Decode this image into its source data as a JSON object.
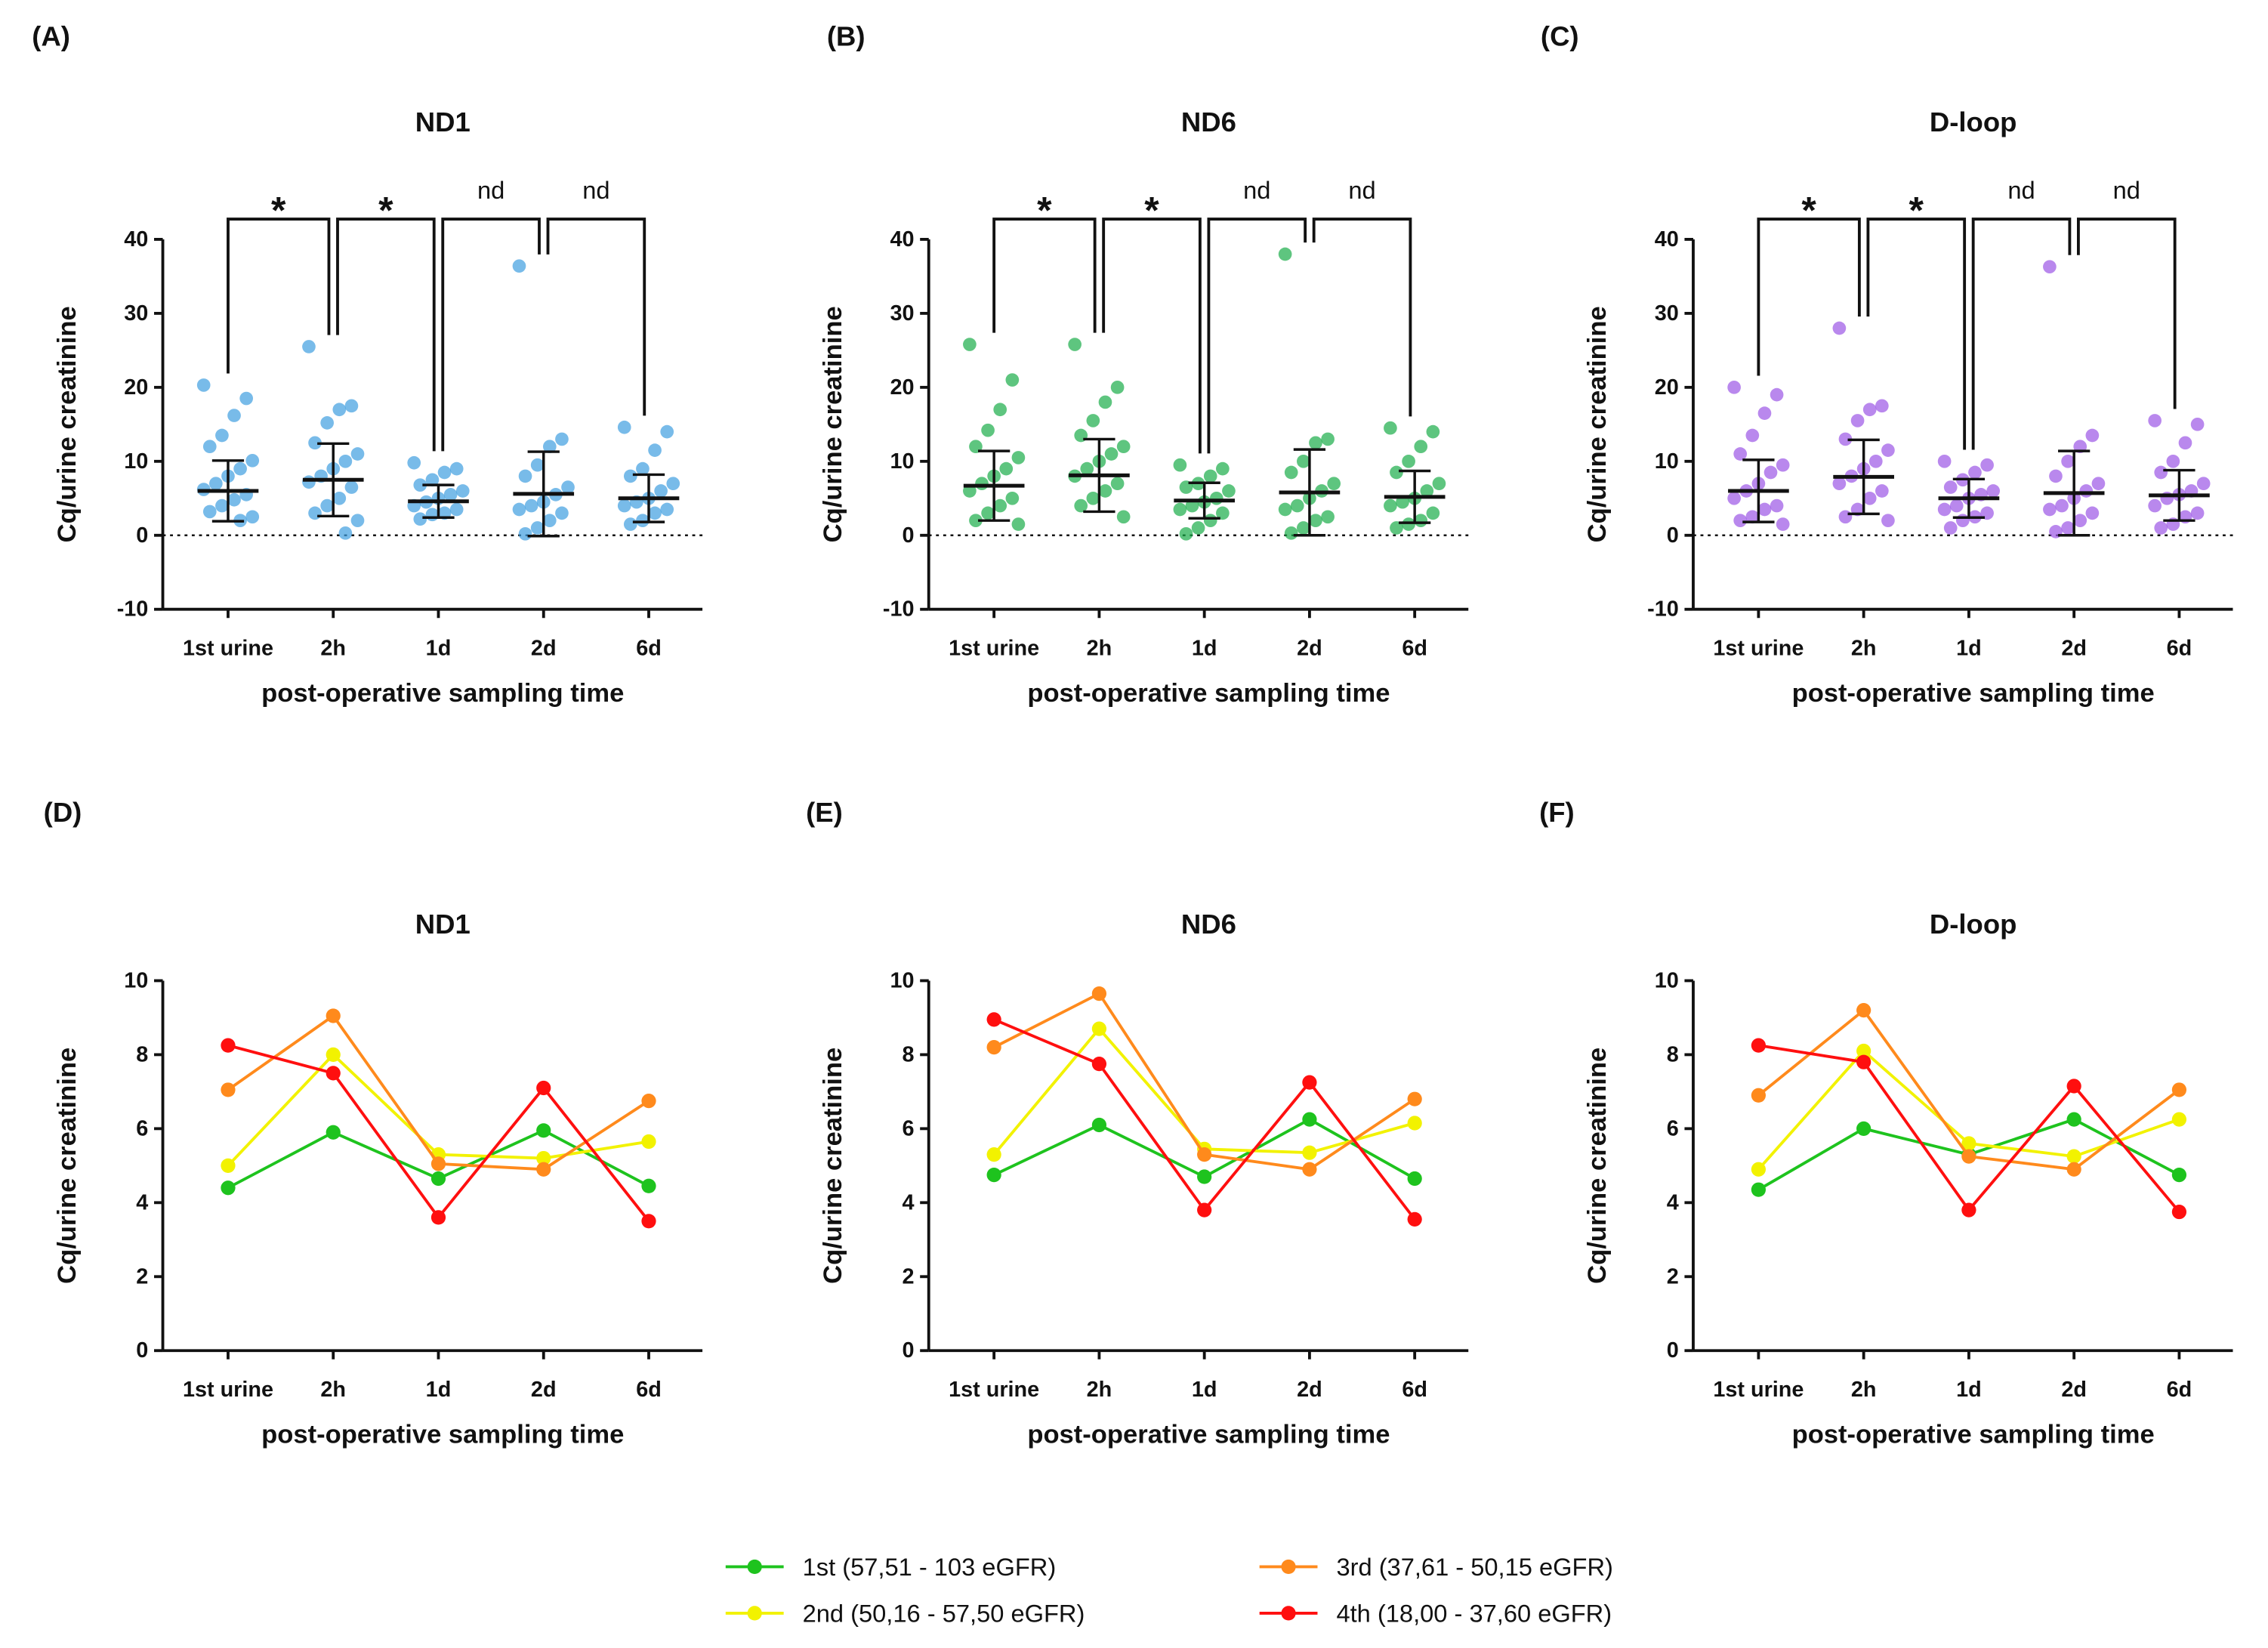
{
  "chart_data": [
    {
      "type": "strip",
      "panel": "(A)",
      "title": "ND1",
      "x_label": "post-operative sampling time",
      "y_label": "Cq/urine creatinine",
      "color": "#3f9ee0",
      "categories": [
        "1st urine",
        "2h",
        "1d",
        "2d",
        "6d"
      ],
      "ylim": [
        -10,
        40
      ],
      "yticks": [
        -10,
        0,
        10,
        20,
        30,
        40
      ],
      "reference_line": 0,
      "points": [
        [
          20.3,
          18.5,
          16.2,
          13.5,
          12.0,
          10.1,
          9.0,
          8.0,
          7.0,
          6.2,
          5.5,
          4.8,
          4.0,
          3.2,
          2.5,
          2.0
        ],
        [
          25.5,
          17.5,
          17.0,
          15.2,
          12.5,
          11.0,
          10.0,
          9.0,
          8.0,
          7.2,
          6.5,
          5.0,
          4.0,
          3.0,
          2.0,
          0.3
        ],
        [
          9.8,
          9.0,
          8.5,
          7.5,
          6.8,
          6.0,
          5.5,
          5.0,
          4.5,
          4.0,
          3.5,
          3.0,
          2.8,
          2.2
        ],
        [
          36.4,
          13.0,
          12.0,
          9.5,
          8.0,
          6.5,
          5.5,
          4.5,
          4.0,
          3.5,
          3.0,
          2.0,
          1.0,
          0.2
        ],
        [
          14.6,
          14.0,
          11.5,
          9.0,
          8.0,
          7.0,
          6.0,
          5.0,
          4.5,
          4.0,
          3.5,
          3.0,
          2.0,
          1.5
        ]
      ],
      "means": [
        6.0,
        7.5,
        4.6,
        5.6,
        5.0
      ],
      "sd": [
        4.1,
        4.9,
        2.2,
        5.7,
        3.2
      ],
      "comparisons": [
        "*",
        "*",
        "nd",
        "nd"
      ]
    },
    {
      "type": "strip",
      "panel": "(B)",
      "title": "ND6",
      "x_label": "post-operative sampling time",
      "y_label": "Cq/urine creatinine",
      "color": "#1aad48",
      "categories": [
        "1st urine",
        "2h",
        "1d",
        "2d",
        "6d"
      ],
      "ylim": [
        -10,
        40
      ],
      "yticks": [
        -10,
        0,
        10,
        20,
        30,
        40
      ],
      "reference_line": 0,
      "points": [
        [
          25.8,
          21.0,
          17.0,
          14.2,
          12.0,
          10.5,
          9.0,
          8.0,
          7.0,
          6.0,
          5.0,
          4.0,
          3.0,
          2.0,
          1.5
        ],
        [
          25.8,
          20.0,
          18.0,
          15.5,
          13.5,
          12.0,
          11.0,
          10.0,
          9.0,
          8.0,
          7.0,
          6.0,
          5.0,
          4.0,
          2.5
        ],
        [
          9.5,
          9.0,
          8.0,
          7.0,
          6.5,
          6.0,
          5.0,
          4.5,
          4.0,
          3.5,
          3.0,
          2.0,
          1.0,
          0.2
        ],
        [
          38.0,
          13.0,
          12.5,
          10.0,
          8.5,
          7.0,
          6.0,
          5.0,
          4.0,
          3.5,
          2.5,
          2.0,
          1.0,
          0.3
        ],
        [
          14.5,
          14.0,
          12.0,
          10.0,
          8.5,
          7.0,
          6.0,
          5.0,
          4.5,
          4.0,
          3.0,
          2.0,
          1.5,
          1.0
        ]
      ],
      "means": [
        6.7,
        8.1,
        4.7,
        5.8,
        5.2
      ],
      "sd": [
        4.7,
        4.9,
        2.4,
        5.8,
        3.5
      ],
      "comparisons": [
        "*",
        "*",
        "nd",
        "nd"
      ]
    },
    {
      "type": "strip",
      "panel": "(C)",
      "title": "D-loop",
      "x_label": "post-operative sampling time",
      "y_label": "Cq/urine creatinine",
      "color": "#9b55e6",
      "categories": [
        "1st urine",
        "2h",
        "1d",
        "2d",
        "6d"
      ],
      "ylim": [
        -10,
        40
      ],
      "yticks": [
        -10,
        0,
        10,
        20,
        30,
        40
      ],
      "reference_line": 0,
      "points": [
        [
          20.0,
          19.0,
          16.5,
          13.5,
          11.0,
          9.5,
          8.5,
          7.0,
          6.0,
          5.0,
          4.0,
          3.5,
          2.5,
          2.0,
          1.5
        ],
        [
          28.0,
          17.5,
          17.0,
          15.5,
          13.0,
          11.5,
          10.0,
          9.0,
          8.0,
          7.0,
          6.0,
          5.0,
          3.5,
          2.5,
          2.0
        ],
        [
          10.0,
          9.5,
          8.5,
          7.5,
          6.5,
          6.0,
          5.5,
          5.0,
          4.0,
          3.5,
          3.0,
          2.5,
          2.0,
          1.0
        ],
        [
          36.3,
          13.5,
          12.0,
          10.0,
          8.0,
          7.0,
          6.0,
          5.0,
          4.0,
          3.5,
          3.0,
          2.0,
          1.0,
          0.5
        ],
        [
          15.5,
          15.0,
          12.5,
          10.0,
          8.5,
          7.0,
          6.0,
          5.5,
          5.0,
          4.0,
          3.0,
          2.5,
          1.5,
          1.0
        ]
      ],
      "means": [
        6.0,
        7.9,
        5.0,
        5.7,
        5.4
      ],
      "sd": [
        4.2,
        5.0,
        2.6,
        5.7,
        3.4
      ],
      "comparisons": [
        "*",
        "*",
        "nd",
        "nd"
      ]
    },
    {
      "type": "line",
      "panel": "(D)",
      "title": "ND1",
      "x_label": "post-operative sampling time",
      "y_label": "Cq/urine creatinine",
      "categories": [
        "1st urine",
        "2h",
        "1d",
        "2d",
        "6d"
      ],
      "ylim": [
        0,
        10
      ],
      "yticks": [
        0,
        2,
        4,
        6,
        8,
        10
      ],
      "series": [
        {
          "name": "1st (57,51 - 103 eGFR)",
          "color": "#1ec31e",
          "values": [
            4.4,
            5.9,
            4.65,
            5.95,
            4.45
          ]
        },
        {
          "name": "2nd (50,16 - 57,50 eGFR)",
          "color": "#f2f200",
          "values": [
            5.0,
            8.0,
            5.3,
            5.2,
            5.65
          ]
        },
        {
          "name": "3rd (37,61 - 50,15 eGFR)",
          "color": "#ff8a1c",
          "values": [
            7.05,
            9.05,
            5.05,
            4.9,
            6.75
          ]
        },
        {
          "name": "4th (18,00 - 37,60 eGFR)",
          "color": "#ff0f0f",
          "values": [
            8.25,
            7.5,
            3.6,
            7.1,
            3.5
          ]
        }
      ]
    },
    {
      "type": "line",
      "panel": "(E)",
      "title": "ND6",
      "x_label": "post-operative sampling time",
      "y_label": "Cq/urine creatinine",
      "categories": [
        "1st urine",
        "2h",
        "1d",
        "2d",
        "6d"
      ],
      "ylim": [
        0,
        10
      ],
      "yticks": [
        0,
        2,
        4,
        6,
        8,
        10
      ],
      "series": [
        {
          "name": "1st (57,51 - 103 eGFR)",
          "color": "#1ec31e",
          "values": [
            4.75,
            6.1,
            4.7,
            6.25,
            4.65
          ]
        },
        {
          "name": "2nd (50,16 - 57,50 eGFR)",
          "color": "#f2f200",
          "values": [
            5.3,
            8.7,
            5.45,
            5.35,
            6.15
          ]
        },
        {
          "name": "3rd (37,61 - 50,15 eGFR)",
          "color": "#ff8a1c",
          "values": [
            8.2,
            9.65,
            5.3,
            4.9,
            6.8
          ]
        },
        {
          "name": "4th (18,00 - 37,60 eGFR)",
          "color": "#ff0f0f",
          "values": [
            8.95,
            7.75,
            3.8,
            7.25,
            3.55
          ]
        }
      ]
    },
    {
      "type": "line",
      "panel": "(F)",
      "title": "D-loop",
      "x_label": "post-operative sampling time",
      "y_label": "Cq/urine creatinine",
      "categories": [
        "1st urine",
        "2h",
        "1d",
        "2d",
        "6d"
      ],
      "ylim": [
        0,
        10
      ],
      "yticks": [
        0,
        2,
        4,
        6,
        8,
        10
      ],
      "series": [
        {
          "name": "1st (57,51 - 103 eGFR)",
          "color": "#1ec31e",
          "values": [
            4.35,
            6.0,
            5.3,
            6.25,
            4.75
          ]
        },
        {
          "name": "2nd (50,16 - 57,50 eGFR)",
          "color": "#f2f200",
          "values": [
            4.9,
            8.1,
            5.6,
            5.25,
            6.25
          ]
        },
        {
          "name": "3rd (37,61 - 50,15 eGFR)",
          "color": "#ff8a1c",
          "values": [
            6.9,
            9.2,
            5.25,
            4.9,
            7.05
          ]
        },
        {
          "name": "4th (18,00 - 37,60 eGFR)",
          "color": "#ff0f0f",
          "values": [
            8.25,
            7.8,
            3.8,
            7.15,
            3.75
          ]
        }
      ]
    }
  ]
}
